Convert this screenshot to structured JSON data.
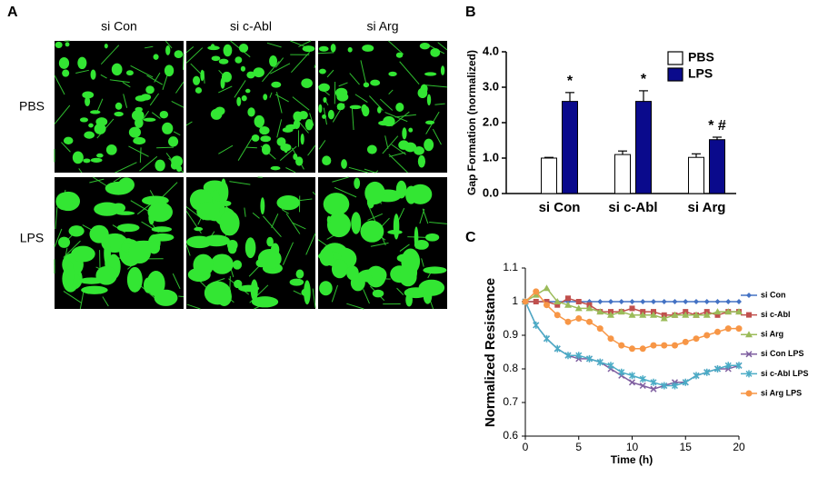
{
  "panel_a": {
    "label": "A",
    "columns": [
      "si Con",
      "si c-Abl",
      "si Arg"
    ],
    "rows": [
      "PBS",
      "LPS"
    ]
  },
  "chart_data": [
    {
      "type": "bar",
      "panel_label": "B",
      "y_label": "Gap Formation (normalized)",
      "categories": [
        "si Con",
        "si c-Abl",
        "si Arg"
      ],
      "series": [
        {
          "name": "PBS",
          "color": "#ffffff",
          "values": [
            1.0,
            1.1,
            1.02
          ],
          "errors": [
            0.02,
            0.1,
            0.1
          ]
        },
        {
          "name": "LPS",
          "color": "#0a0a8c",
          "values": [
            2.6,
            2.6,
            1.52
          ],
          "errors": [
            0.25,
            0.3,
            0.07
          ],
          "value_annotations": [
            "*",
            "*",
            "* #"
          ]
        }
      ],
      "ylim": [
        0,
        4
      ],
      "yticks": [
        {
          "value": 0,
          "label": "0.0"
        },
        {
          "value": 1,
          "label": "1.0"
        },
        {
          "value": 2,
          "label": "2.0"
        },
        {
          "value": 3,
          "label": "3.0"
        },
        {
          "value": 4,
          "label": "4.0"
        }
      ],
      "legend": "upper right"
    },
    {
      "type": "line",
      "panel_label": "C",
      "y_label": "Normalized Resistance",
      "x_label": "Time (h)",
      "x": [
        0,
        1,
        2,
        3,
        4,
        5,
        6,
        7,
        8,
        9,
        10,
        11,
        12,
        13,
        14,
        15,
        16,
        17,
        18,
        19,
        20
      ],
      "series": [
        {
          "name": "si Con",
          "color": "#4472c4",
          "marker": "diamond",
          "values": [
            1,
            1,
            1,
            1,
            1,
            1,
            1,
            1,
            1,
            1,
            1,
            1,
            1,
            1,
            1,
            1,
            1,
            1,
            1,
            1,
            1
          ]
        },
        {
          "name": "si c-Abl",
          "color": "#c0504d",
          "marker": "square",
          "values": [
            1,
            1.0,
            1.0,
            0.99,
            1.01,
            1.0,
            0.99,
            0.97,
            0.97,
            0.97,
            0.98,
            0.97,
            0.97,
            0.96,
            0.96,
            0.97,
            0.96,
            0.97,
            0.96,
            0.97,
            0.97
          ]
        },
        {
          "name": "si Arg",
          "color": "#9bbb59",
          "marker": "triangle",
          "values": [
            1,
            1.02,
            1.04,
            1.0,
            0.99,
            0.98,
            0.98,
            0.97,
            0.96,
            0.97,
            0.96,
            0.96,
            0.96,
            0.95,
            0.96,
            0.96,
            0.96,
            0.96,
            0.97,
            0.97,
            0.97
          ]
        },
        {
          "name": "si Con LPS",
          "color": "#7f5fa0",
          "marker": "x",
          "values": [
            1,
            0.93,
            0.89,
            0.86,
            0.84,
            0.83,
            0.83,
            0.82,
            0.8,
            0.78,
            0.76,
            0.75,
            0.74,
            0.75,
            0.76,
            0.76,
            0.78,
            0.79,
            0.8,
            0.8,
            0.81
          ]
        },
        {
          "name": "si c-Abl LPS",
          "color": "#4bacc6",
          "marker": "star",
          "values": [
            1,
            0.93,
            0.89,
            0.86,
            0.84,
            0.84,
            0.83,
            0.82,
            0.81,
            0.79,
            0.78,
            0.77,
            0.76,
            0.75,
            0.75,
            0.76,
            0.78,
            0.79,
            0.8,
            0.81,
            0.81
          ]
        },
        {
          "name": "si Arg LPS",
          "color": "#f79646",
          "marker": "circle",
          "values": [
            1,
            1.03,
            0.99,
            0.96,
            0.94,
            0.95,
            0.94,
            0.92,
            0.89,
            0.87,
            0.86,
            0.86,
            0.87,
            0.87,
            0.87,
            0.88,
            0.89,
            0.9,
            0.91,
            0.92,
            0.92
          ]
        }
      ],
      "xlim": [
        0,
        20
      ],
      "xticks": [
        0,
        5,
        10,
        15,
        20
      ],
      "ylim": [
        0.6,
        1.1
      ],
      "yticks": [
        0.6,
        0.7,
        0.8,
        0.9,
        1,
        1.1
      ],
      "legend": "right"
    }
  ]
}
